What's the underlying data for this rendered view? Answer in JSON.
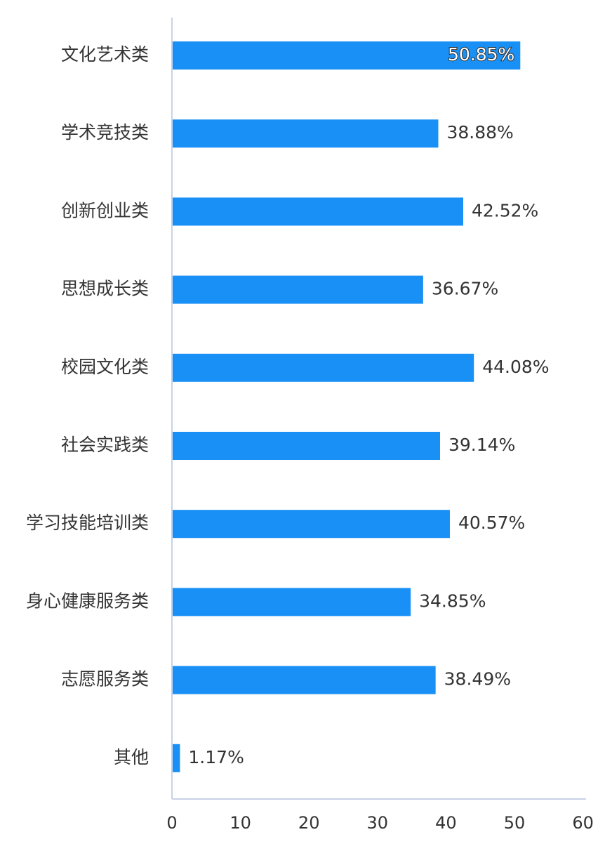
{
  "chart_data": {
    "type": "bar",
    "orientation": "horizontal",
    "categories": [
      "文化艺术类",
      "学术竞技类",
      "创新创业类",
      "思想成长类",
      "校园文化类",
      "社会实践类",
      "学习技能培训类",
      "身心健康服务类",
      "志愿服务类",
      "其他"
    ],
    "values": [
      50.85,
      38.88,
      42.52,
      36.67,
      44.08,
      39.14,
      40.57,
      34.85,
      38.49,
      1.17
    ],
    "value_labels": [
      "50.85%",
      "38.88%",
      "42.52%",
      "36.67%",
      "44.08%",
      "39.14%",
      "40.57%",
      "34.85%",
      "38.49%",
      "1.17%"
    ],
    "xticks": [
      "0",
      "10",
      "20",
      "30",
      "40",
      "50",
      "60"
    ],
    "xlim": [
      0,
      60
    ],
    "grid": false,
    "bar_color": "#1890f5"
  }
}
